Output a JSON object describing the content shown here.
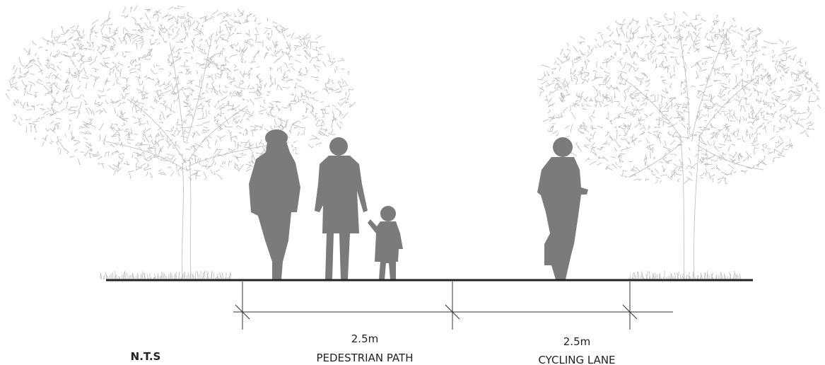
{
  "scale_note": "N.T.S",
  "dimensions": [
    {
      "size": "2.5m",
      "name": "PEDESTRIAN PATH"
    },
    {
      "size": "2.5m",
      "name": "CYCLING LANE"
    }
  ]
}
